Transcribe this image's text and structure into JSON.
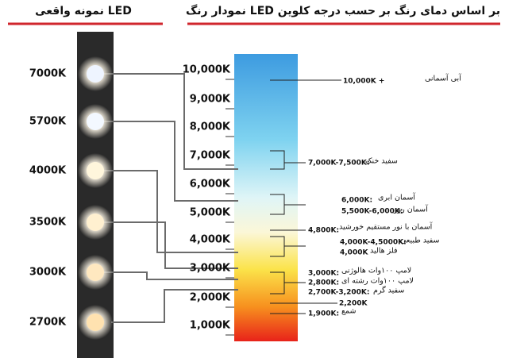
{
  "header": {
    "left_title": "نمونه واقعی LED",
    "right_title": "نمودار رنگ LED بر اساس دمای رنگ بر حسب درجه کلوین"
  },
  "leds": [
    "7000K",
    "5700K",
    "4000K",
    "3500K",
    "3000K",
    "2700K"
  ],
  "scale": [
    "10,000K",
    "9,000K",
    "8,000K",
    "7,000K",
    "6,000K",
    "5,000K",
    "4,000K",
    "3,000K",
    "2,000K",
    "1,000K"
  ],
  "annotations": [
    {
      "code": "10,000K +",
      "desc": "آبی آسمانی"
    },
    {
      "code": "7,000K-7,500K:",
      "desc": "سفید خنک"
    },
    {
      "code": "6,000K:",
      "desc": "آسمان ابری"
    },
    {
      "code": "5,500K-6,000K:",
      "desc": "آسمان روز"
    },
    {
      "code": "4,800K:",
      "desc": "آسمان با نور مستقیم خورشید"
    },
    {
      "code": "4,000K-4,5000K:",
      "desc": "سفید طبیعی"
    },
    {
      "code": "4,000K",
      "desc": "فلز هالید"
    },
    {
      "code": "3,000K:",
      "desc": "لامپ ۱۰۰وات هالوژنی"
    },
    {
      "code": "2,800K:",
      "desc": "لامپ ۱۰۰وات رشته ای"
    },
    {
      "code": "2,700K-3,200K:",
      "desc": "سفید گرم"
    },
    {
      "code": "2,200K",
      "desc": null
    },
    {
      "code": "1,900K:",
      "desc": "شمع"
    }
  ]
}
